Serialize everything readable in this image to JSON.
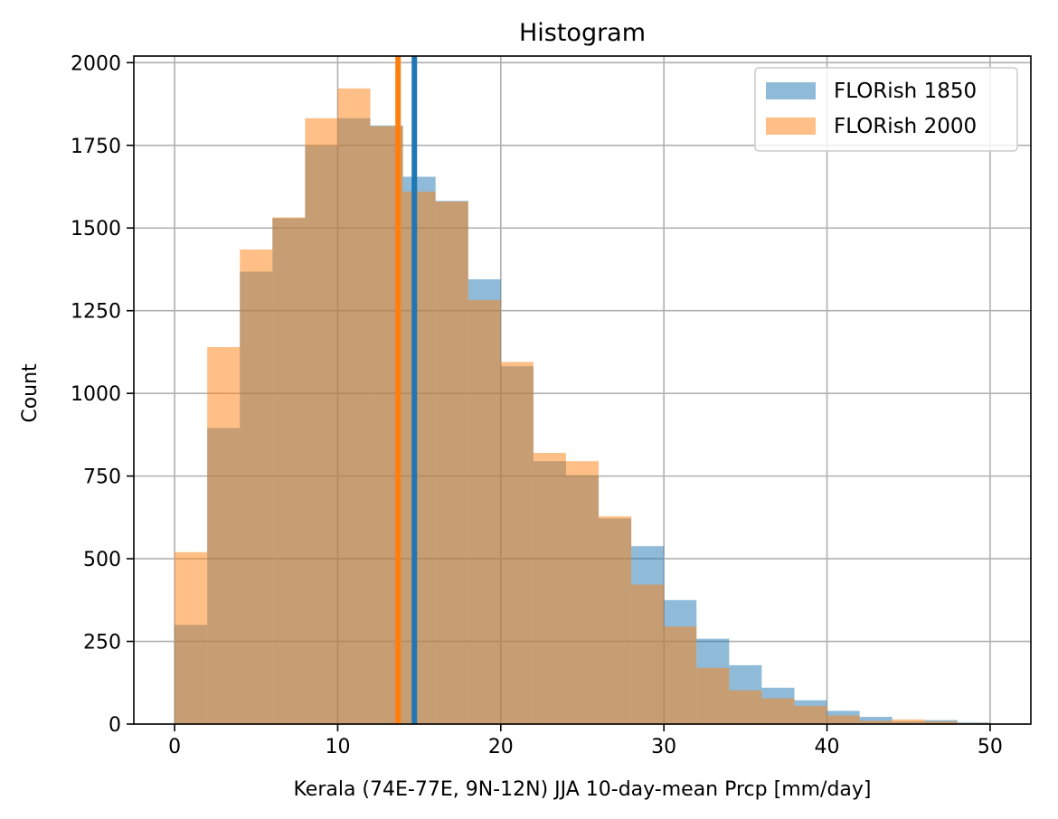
{
  "chart_data": {
    "type": "bar",
    "title": "Histogram",
    "xlabel": "Kerala (74E-77E, 9N-12N) JJA 10-day-mean Prcp [mm/day]",
    "ylabel": "Count",
    "xlim": [
      -2.5,
      52.5
    ],
    "ylim": [
      0,
      2020
    ],
    "xticks": [
      0,
      10,
      20,
      30,
      40,
      50
    ],
    "yticks": [
      0,
      250,
      500,
      750,
      1000,
      1250,
      1500,
      1750,
      2000
    ],
    "grid": true,
    "legend_position": "top-right",
    "bin_edges": [
      0,
      2,
      4,
      6,
      8,
      10,
      12,
      14,
      16,
      18,
      20,
      22,
      24,
      26,
      28,
      30,
      32,
      34,
      36,
      38,
      40,
      42,
      44,
      46,
      48,
      50
    ],
    "series": [
      {
        "name": "FLORish 1850",
        "color": "#1f77b4",
        "values": [
          300,
          895,
          1368,
          1530,
          1748,
          1832,
          1810,
          1655,
          1582,
          1345,
          1082,
          795,
          752,
          622,
          538,
          375,
          258,
          178,
          110,
          72,
          40,
          22,
          8,
          12,
          5
        ]
      },
      {
        "name": "FLORish 2000",
        "color": "#ff7f0e",
        "values": [
          520,
          1140,
          1435,
          1532,
          1832,
          1922,
          1808,
          1610,
          1580,
          1282,
          1095,
          820,
          795,
          628,
          422,
          295,
          170,
          102,
          78,
          55,
          26,
          10,
          14,
          8,
          3
        ]
      }
    ],
    "vertical_lines": [
      {
        "series": "FLORish 2000",
        "x": 13.7,
        "color": "#ff7f0e"
      },
      {
        "series": "FLORish 1850",
        "x": 14.7,
        "color": "#1f77b4"
      }
    ]
  }
}
